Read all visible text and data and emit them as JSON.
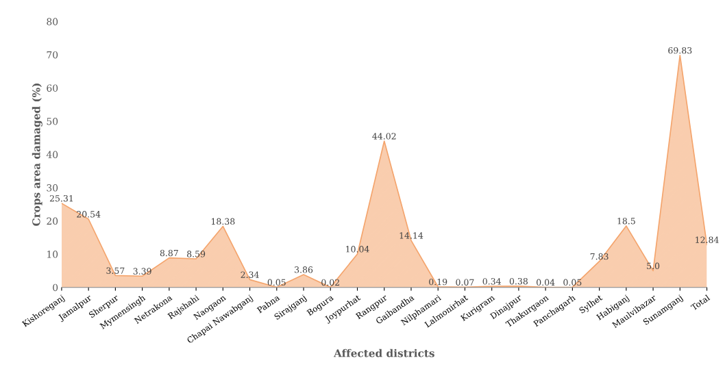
{
  "chart_data": {
    "type": "area",
    "xlabel": "Affected districts",
    "ylabel": "Crops area damaged (%)",
    "categories": [
      "Kishoreganj",
      "Jamalpur",
      "Sherpur",
      "Mymensingh",
      "Netrakona",
      "Rajshahi",
      "Naogaon",
      "Chapai Nawabganj",
      "Pabna",
      "Sirajganj",
      "Bogura",
      "Joypurhat",
      "Rangpur",
      "Gaibandha",
      "Nilphamari",
      "Lalmonirhat",
      "Kurigram",
      "Dinajpur",
      "Thakurgaon",
      "Panchagarh",
      "Sylhet",
      "Habiganj",
      "Maulvibazar",
      "Sunamganj",
      "Total"
    ],
    "values": [
      25.31,
      20.54,
      3.57,
      3.39,
      8.87,
      8.59,
      18.38,
      2.34,
      0.05,
      3.86,
      0.02,
      10.04,
      44.02,
      14.14,
      0.19,
      0.07,
      0.34,
      0.38,
      0.04,
      0.05,
      7.83,
      18.5,
      5.0,
      69.83,
      12.84
    ],
    "value_labels": [
      "25.31",
      "20.54",
      "3.57",
      "3.39",
      "8.87",
      "8.59",
      "18.38",
      "2.34",
      "0.05",
      "3.86",
      "0.02",
      "10.04",
      "44.02",
      "14.14",
      "0.19",
      "0.07",
      "0.34",
      "0.38",
      "0.04",
      "0.05",
      "7.83",
      "18.5",
      "5.0",
      "69.83",
      "12.84"
    ],
    "color": "#f4a46c",
    "ylim": [
      0,
      80
    ],
    "yticks": [
      0,
      10,
      20,
      30,
      40,
      50,
      60,
      70,
      80
    ],
    "grid": false
  }
}
